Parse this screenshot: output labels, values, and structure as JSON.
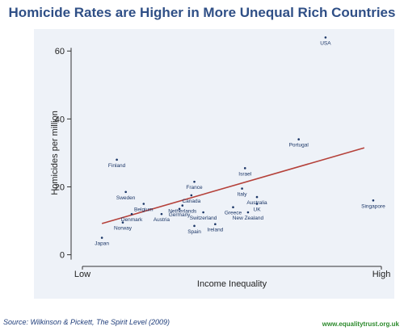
{
  "title": "Homicide Rates are Higher in More Unequal Rich Countries",
  "source": "Source: Wilkinson & Pickett, The Spirit Level (2009)",
  "website": "www.equalitytrust.org.uk",
  "colors": {
    "title": "#2f4f86",
    "trend": "#b5413a",
    "background": "#eef2f8",
    "source": "#1f3d7a",
    "website": "#2e8b2e"
  },
  "chart_data": {
    "type": "scatter",
    "xlabel": "Income Inequality",
    "ylabel": "Homicides per million",
    "x_tick_labels": [
      "Low",
      "High"
    ],
    "xlim": [
      0,
      100
    ],
    "ylim": [
      -2,
      66
    ],
    "y_ticks": [
      0,
      20,
      40,
      60
    ],
    "grid": false,
    "points": [
      {
        "label": "Japan",
        "x": 6,
        "y": 5
      },
      {
        "label": "Norway",
        "x": 13,
        "y": 9.5
      },
      {
        "label": "Finland",
        "x": 11,
        "y": 28
      },
      {
        "label": "Sweden",
        "x": 14,
        "y": 18.5
      },
      {
        "label": "Belgium",
        "x": 20,
        "y": 15
      },
      {
        "label": "Denmark",
        "x": 16,
        "y": 12
      },
      {
        "label": "Austria",
        "x": 26,
        "y": 12
      },
      {
        "label": "Germany",
        "x": 32,
        "y": 13.5
      },
      {
        "label": "Netherlands",
        "x": 33,
        "y": 14.5
      },
      {
        "label": "Canada",
        "x": 36,
        "y": 17.5
      },
      {
        "label": "France",
        "x": 37,
        "y": 21.5
      },
      {
        "label": "Switzerland",
        "x": 40,
        "y": 12.5
      },
      {
        "label": "Spain",
        "x": 37,
        "y": 8.5
      },
      {
        "label": "Ireland",
        "x": 44,
        "y": 9
      },
      {
        "label": "Greece",
        "x": 50,
        "y": 14
      },
      {
        "label": "Israel",
        "x": 54,
        "y": 25.5
      },
      {
        "label": "Italy",
        "x": 53,
        "y": 19.5
      },
      {
        "label": "Australia",
        "x": 58,
        "y": 17
      },
      {
        "label": "UK",
        "x": 58,
        "y": 15
      },
      {
        "label": "New Zealand",
        "x": 55,
        "y": 12.5
      },
      {
        "label": "Portugal",
        "x": 72,
        "y": 34
      },
      {
        "label": "USA",
        "x": 81,
        "y": 64
      },
      {
        "label": "Singapore",
        "x": 97,
        "y": 16
      }
    ],
    "trend_line": {
      "x": [
        6,
        94
      ],
      "y": [
        9.2,
        31.5
      ]
    }
  }
}
